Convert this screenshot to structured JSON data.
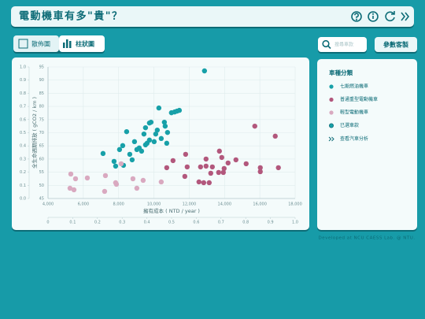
{
  "header": {
    "title": "電動機車有多\"貴\"？"
  },
  "toolbar": {
    "tabs": [
      "散佈圖",
      "柱狀圖"
    ],
    "search_placeholder": "搜尋車款",
    "custom_button": "參數客製"
  },
  "chart_data": {
    "type": "scatter",
    "xlabel": "擁有成本 ( NTD / year )",
    "ylabel": "全生命週期排放 ( gCO2 / km )",
    "xlim": [
      4000,
      18000
    ],
    "xticks": [
      {
        "value": 4000,
        "label": "4,000"
      },
      {
        "value": 6000,
        "label": "6,000"
      },
      {
        "value": 8000,
        "label": "8,000"
      },
      {
        "value": 10000,
        "label": "10,000"
      },
      {
        "value": 12000,
        "label": "12,000"
      },
      {
        "value": 14000,
        "label": "14,000"
      },
      {
        "value": 16000,
        "label": "16,000"
      },
      {
        "value": 18000,
        "label": "18,000"
      }
    ],
    "ylim": [
      45,
      95
    ],
    "yticks": [
      45,
      50,
      55,
      60,
      65,
      70,
      75,
      80,
      85,
      90,
      95
    ],
    "y2lim": [
      0,
      1
    ],
    "y2ticks": [
      {
        "value": 0,
        "label": "0.0"
      },
      0.1,
      0.2,
      0.3,
      0.4,
      0.5,
      0.6,
      0.7,
      0.8,
      0.9,
      {
        "value": 1,
        "label": "1.0"
      }
    ],
    "x2lim": [
      0,
      1
    ],
    "x2ticks": [
      0,
      0.1,
      0.2,
      0.3,
      0.4,
      0.5,
      0.6,
      0.7,
      0.8,
      0.9,
      {
        "value": 1,
        "label": "1.0"
      }
    ],
    "grid": true,
    "series": [
      {
        "name": "七期燃油機車",
        "color": "#17a0a8",
        "x": [
          12865,
          7118,
          7742,
          7831,
          8053,
          8232,
          8276,
          8454,
          8632,
          8766,
          8900,
          9033,
          9167,
          9301,
          9435,
          9523,
          9612,
          9746,
          9835,
          10013,
          10102,
          10191,
          10280,
          10414,
          10592,
          10637,
          10726,
          10770,
          10993,
          11172,
          11305,
          11439,
          9523,
          9746
        ],
        "values": [
          93.5,
          62.1,
          59.1,
          57.3,
          63.6,
          65.1,
          57.6,
          70.4,
          61.8,
          59.7,
          66.6,
          63.6,
          64.2,
          63.0,
          69.5,
          71.9,
          66.0,
          67.2,
          74.0,
          66.6,
          69.5,
          71.0,
          79.4,
          67.8,
          74.0,
          72.5,
          66.0,
          70.1,
          77.6,
          77.9,
          78.2,
          78.5,
          65.4,
          73.7
        ]
      },
      {
        "name": "普通重型電動機車",
        "color": "#b2577c",
        "x": [
          15715,
          16873,
          17051,
          16026,
          16026,
          15225,
          14646,
          14200,
          13710,
          13844,
          13933,
          13978,
          13666,
          13310,
          13220,
          12953,
          12953,
          12641,
          12552,
          12820,
          13131,
          11796,
          11884,
          11082,
          10726,
          11751
        ],
        "values": [
          72.5,
          68.7,
          56.7,
          56.7,
          55.2,
          58.2,
          59.7,
          58.5,
          63.0,
          60.6,
          54.9,
          56.4,
          54.9,
          57.0,
          54.6,
          60.0,
          57.3,
          57.0,
          51.3,
          51.0,
          51.0,
          61.8,
          57.0,
          59.4,
          56.7,
          53.4
        ]
      },
      {
        "name": "輕型電動機車",
        "color": "#d9a9c0",
        "x": [
          5292,
          5559,
          6227,
          5247,
          5470,
          7252,
          7207,
          7831,
          7875,
          8143,
          8811,
          9033,
          9390,
          10414
        ],
        "values": [
          54.3,
          52.5,
          52.8,
          48.9,
          48.3,
          53.7,
          47.7,
          51.0,
          50.4,
          58.2,
          52.5,
          48.9,
          51.9,
          51.3
        ]
      }
    ]
  },
  "legend_panel": {
    "title": "車種分類",
    "selected_label": "已選車款",
    "selected_color": "#17a0a8",
    "link": "查看汽車分析"
  },
  "footer": "Developed at NCU CAESS Lab. @ NTU."
}
